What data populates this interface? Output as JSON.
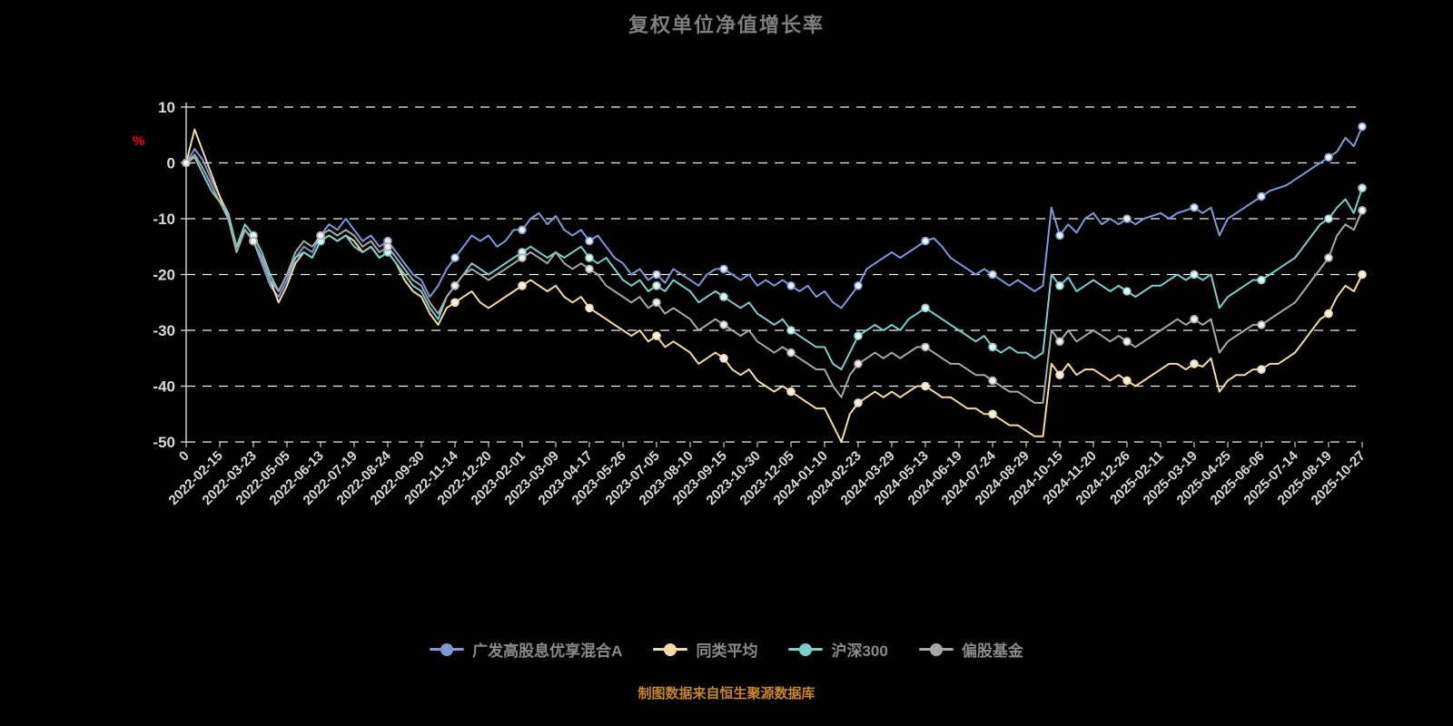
{
  "title": "复权单位净值增长率",
  "footer": "制图数据来自恒生聚源数据库",
  "colors": {
    "background": "#000000",
    "title": "#7f7f7f",
    "axis": "#cccccc",
    "grid": "#ffffff",
    "tick_label": "#d9d9d9",
    "percent_label": "#ff0000",
    "footer": "#c8871f",
    "marker_fill": "#f0f0f0"
  },
  "chart_data": {
    "type": "line",
    "title": "复权单位净值增长率",
    "xlabel": "",
    "ylabel": "%",
    "ylim": [
      -50,
      10
    ],
    "yticks": [
      10,
      0,
      -10,
      -20,
      -30,
      -40,
      -50
    ],
    "grid": true,
    "grid_style": "dashed",
    "legend_position": "bottom",
    "points_per_tick": 4,
    "x_tick_labels": [
      "0",
      "2022-02-15",
      "2022-03-23",
      "2022-05-05",
      "2022-06-13",
      "2022-07-19",
      "2022-08-24",
      "2022-09-30",
      "2022-11-14",
      "2022-12-20",
      "2023-02-01",
      "2023-03-09",
      "2023-04-17",
      "2023-05-26",
      "2023-07-05",
      "2023-08-10",
      "2023-09-15",
      "2023-10-30",
      "2023-12-05",
      "2024-01-10",
      "2024-02-23",
      "2024-03-29",
      "2024-05-13",
      "2024-06-19",
      "2024-07-24",
      "2024-08-29",
      "2024-10-15",
      "2024-11-20",
      "2024-12-26",
      "2025-02-11",
      "2025-03-19",
      "2025-04-25",
      "2025-06-06",
      "2025-07-14",
      "2025-08-19",
      "2025-10-27"
    ],
    "series": [
      {
        "name": "广发高股息优享混合A",
        "color": "#7d9ad6",
        "values": [
          0,
          2.5,
          0.5,
          -3,
          -6,
          -9,
          -16,
          -12,
          -14,
          -18,
          -22,
          -24,
          -21,
          -17,
          -15,
          -16,
          -13,
          -11,
          -12,
          -10,
          -12,
          -14,
          -13,
          -15,
          -14,
          -16,
          -18,
          -20,
          -21,
          -24,
          -22,
          -19,
          -17,
          -15,
          -13,
          -14,
          -13,
          -15,
          -14,
          -12,
          -12,
          -10,
          -9,
          -11,
          -9.5,
          -12,
          -13,
          -12,
          -14,
          -13,
          -15,
          -17,
          -18,
          -20,
          -19,
          -21,
          -20,
          -21.5,
          -19,
          -20,
          -21,
          -22,
          -20,
          -19,
          -19,
          -20,
          -21,
          -20,
          -22,
          -21,
          -22,
          -21,
          -22,
          -23,
          -22,
          -24,
          -23,
          -25,
          -26,
          -24,
          -22,
          -19,
          -18,
          -17,
          -16,
          -17,
          -16,
          -15,
          -14,
          -13.5,
          -15,
          -17,
          -18,
          -19,
          -20,
          -19,
          -20,
          -21,
          -22,
          -21,
          -22,
          -23,
          -22,
          -8,
          -13,
          -11,
          -12.5,
          -10,
          -9,
          -11,
          -10,
          -11,
          -10,
          -11,
          -10,
          -9.5,
          -9,
          -10,
          -9,
          -8.5,
          -8,
          -9,
          -8,
          -13,
          -10,
          -9,
          -8,
          -7,
          -6,
          -5,
          -4.5,
          -4,
          -3,
          -2,
          -1,
          0,
          1,
          2,
          4.5,
          3,
          6.5
        ]
      },
      {
        "name": "同类平均",
        "color": "#f3dca4",
        "values": [
          0,
          6,
          2,
          -2,
          -6,
          -10,
          -15,
          -12,
          -14,
          -17,
          -21,
          -25,
          -22,
          -18,
          -16,
          -17,
          -14,
          -13,
          -14,
          -13,
          -14,
          -16,
          -15,
          -17,
          -16,
          -18,
          -21,
          -23,
          -24,
          -27,
          -29,
          -26,
          -25,
          -24,
          -23,
          -25,
          -26,
          -25,
          -24,
          -23,
          -22,
          -21,
          -22,
          -23,
          -22,
          -24,
          -25,
          -24,
          -26,
          -27,
          -28,
          -29,
          -30,
          -31,
          -30,
          -32,
          -31,
          -33,
          -32,
          -33,
          -34,
          -36,
          -35,
          -34,
          -35,
          -37,
          -38,
          -37,
          -39,
          -40,
          -41,
          -40,
          -41,
          -42,
          -43,
          -44,
          -44,
          -47,
          -50,
          -45,
          -43,
          -42,
          -41,
          -42,
          -41,
          -42,
          -41,
          -40,
          -40,
          -41,
          -42,
          -42,
          -43,
          -44,
          -44,
          -45,
          -45,
          -46,
          -47,
          -47,
          -48,
          -49,
          -49,
          -36,
          -38,
          -36,
          -38,
          -37,
          -37,
          -38,
          -39,
          -38,
          -39,
          -40,
          -39,
          -38,
          -37,
          -36,
          -36,
          -37,
          -36,
          -36.5,
          -35,
          -41,
          -39,
          -38,
          -38,
          -37,
          -37,
          -36,
          -36,
          -35,
          -34,
          -32,
          -30,
          -28,
          -27,
          -24,
          -22,
          -23,
          -20
        ]
      },
      {
        "name": "沪深300",
        "color": "#79cfcb",
        "values": [
          0,
          1,
          -2,
          -5,
          -7,
          -9,
          -15,
          -11,
          -13,
          -16,
          -20,
          -23,
          -20,
          -17,
          -16,
          -17,
          -14,
          -13,
          -14,
          -13,
          -15,
          -16,
          -15,
          -17,
          -16,
          -18,
          -20,
          -22,
          -23,
          -26,
          -28,
          -24,
          -22,
          -20,
          -18,
          -19,
          -20,
          -19,
          -18,
          -17,
          -16,
          -15,
          -16,
          -17,
          -16,
          -17,
          -16,
          -15,
          -17,
          -18,
          -17,
          -19,
          -21,
          -22,
          -21,
          -23,
          -22,
          -23,
          -21,
          -22,
          -23,
          -25,
          -24,
          -23,
          -24,
          -25,
          -26,
          -25,
          -27,
          -28,
          -29,
          -28,
          -30,
          -31,
          -32,
          -33,
          -33,
          -36,
          -37,
          -34,
          -31,
          -30,
          -29,
          -30,
          -29,
          -30,
          -28,
          -27,
          -26,
          -27,
          -28,
          -29,
          -30,
          -31,
          -32,
          -31,
          -33,
          -34,
          -33,
          -34,
          -34,
          -35,
          -34,
          -20,
          -22,
          -20.5,
          -23,
          -22,
          -21,
          -22,
          -23,
          -22,
          -23,
          -24,
          -23,
          -22,
          -22,
          -21,
          -20,
          -21,
          -20,
          -21,
          -20,
          -26,
          -24,
          -23,
          -22,
          -21,
          -21,
          -20,
          -19,
          -18,
          -17,
          -15,
          -13,
          -11,
          -10,
          -8,
          -6.5,
          -9,
          -4.5
        ]
      },
      {
        "name": "偏股基金",
        "color": "#a8a8a8",
        "values": [
          0,
          1.5,
          -1,
          -4,
          -7,
          -10,
          -16,
          -12,
          -14,
          -17,
          -21,
          -23,
          -20,
          -16,
          -14,
          -15,
          -13,
          -12,
          -13,
          -12,
          -13,
          -15,
          -14,
          -16,
          -15,
          -17,
          -19,
          -21,
          -22,
          -25,
          -27,
          -24,
          -22,
          -20,
          -19,
          -20,
          -21,
          -20,
          -19,
          -18,
          -17,
          -16,
          -17,
          -18,
          -16,
          -18,
          -19,
          -18,
          -19,
          -20,
          -22,
          -23,
          -24,
          -25,
          -24,
          -26,
          -25,
          -27,
          -26,
          -27,
          -28,
          -30,
          -29,
          -28,
          -29,
          -30,
          -31,
          -30,
          -32,
          -33,
          -34,
          -33,
          -34,
          -35,
          -36,
          -37,
          -37,
          -40,
          -42,
          -38,
          -36,
          -35,
          -34,
          -35,
          -34,
          -35,
          -34,
          -33,
          -33,
          -34,
          -35,
          -36,
          -36,
          -37,
          -38,
          -38,
          -39,
          -40,
          -41,
          -41,
          -42,
          -43,
          -43,
          -30,
          -32,
          -30,
          -32,
          -31,
          -30,
          -31,
          -32,
          -31,
          -32,
          -33,
          -32,
          -31,
          -30,
          -29,
          -28,
          -29,
          -28,
          -29,
          -28,
          -34,
          -32,
          -31,
          -30,
          -29,
          -29,
          -28,
          -27,
          -26,
          -25,
          -23,
          -21,
          -19,
          -17,
          -13,
          -11,
          -12,
          -8.5
        ]
      }
    ]
  }
}
